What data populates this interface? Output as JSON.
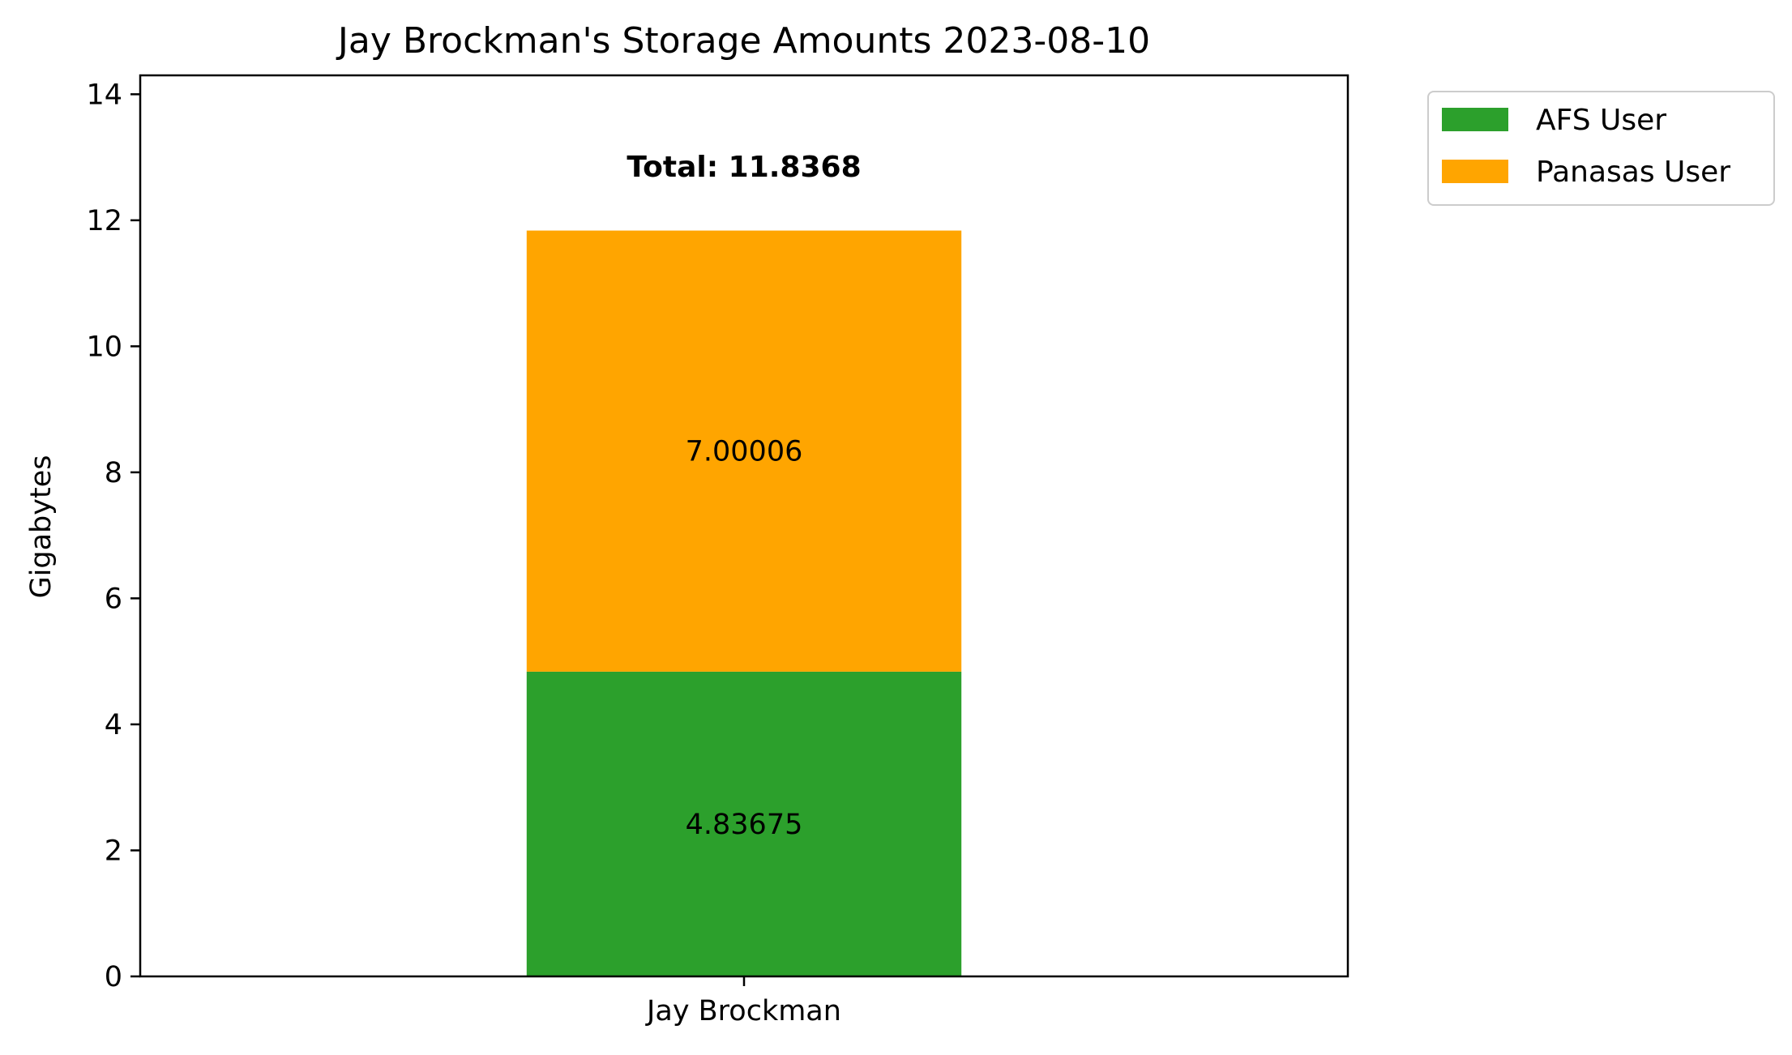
{
  "chart_data": {
    "type": "bar",
    "stacked": true,
    "title": "Jay Brockman's Storage Amounts 2023-08-10",
    "xlabel": "",
    "ylabel": "Gigabytes",
    "categories": [
      "Jay Brockman"
    ],
    "series": [
      {
        "name": "AFS User",
        "values": [
          4.83675
        ],
        "labels": [
          "4.83675"
        ],
        "color": "#2ca02c"
      },
      {
        "name": "Panasas User",
        "values": [
          7.00006
        ],
        "labels": [
          "7.00006"
        ],
        "color": "#ffa500"
      }
    ],
    "total_label": "Total: 11.8368",
    "total_value": 11.8368,
    "ylim": [
      0,
      14.3
    ],
    "yticks": [
      0,
      2,
      4,
      6,
      8,
      10,
      12,
      14
    ],
    "grid": false,
    "legend_position": "outside-top-right"
  }
}
